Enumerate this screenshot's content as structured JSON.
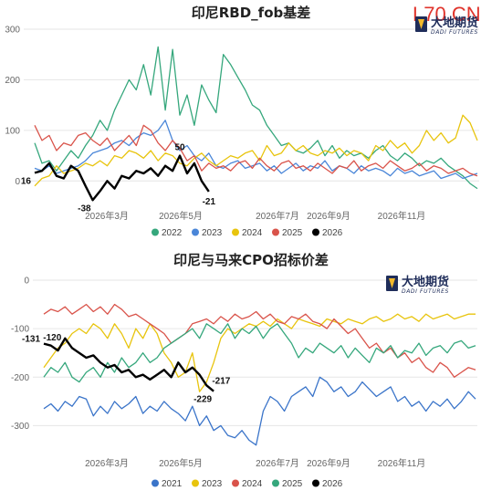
{
  "watermark": "L70.CN",
  "brand": {
    "cn": "大地期货",
    "en": "DADI FUTURES"
  },
  "colors": {
    "2021": "#3a74c9",
    "2022": "#35a77c",
    "2023": "#4a86d8",
    "2024": "#e8c40d",
    "2025": "#d9534a",
    "2026": "#000000"
  },
  "chart_data": [
    {
      "type": "line",
      "title": "印尼RBD_fob基差",
      "ylim": [
        -50,
        300
      ],
      "yticks": [
        0,
        100,
        200,
        300
      ],
      "x_ticks": [
        "2026年3月",
        "2026年5月",
        "2026年7月",
        "2026年9月",
        "2026年11月"
      ],
      "legend_position": "bottom",
      "grid": true,
      "annotations": [
        {
          "label": "16",
          "series": "2026",
          "point": "first"
        },
        {
          "label": "50",
          "series": "2026",
          "point": "max"
        },
        {
          "label": "-38",
          "series": "2026",
          "point": "min"
        },
        {
          "label": "-21",
          "series": "2026",
          "point": "last"
        }
      ],
      "series": [
        {
          "name": "2022",
          "color": "#35a77c",
          "values": [
            75,
            35,
            40,
            20,
            40,
            60,
            45,
            70,
            90,
            120,
            100,
            140,
            170,
            200,
            180,
            230,
            170,
            265,
            140,
            260,
            130,
            170,
            110,
            190,
            160,
            135,
            250,
            230,
            205,
            180,
            150,
            140,
            110,
            90,
            70,
            75,
            60,
            55,
            65,
            80,
            50,
            70,
            45,
            60,
            50,
            55,
            45,
            60,
            70,
            50,
            40,
            55,
            45,
            30,
            40,
            35,
            45,
            30,
            20,
            10,
            -5,
            -15
          ]
        },
        {
          "name": "2023",
          "color": "#4a86d8",
          "values": [
            25,
            20,
            30,
            15,
            20,
            25,
            30,
            40,
            55,
            60,
            65,
            75,
            80,
            70,
            85,
            95,
            90,
            100,
            120,
            80,
            60,
            70,
            50,
            40,
            55,
            30,
            25,
            35,
            40,
            25,
            30,
            35,
            20,
            30,
            15,
            25,
            35,
            20,
            30,
            25,
            40,
            20,
            30,
            25,
            15,
            30,
            20,
            25,
            20,
            10,
            25,
            15,
            20,
            10,
            15,
            20,
            5,
            10,
            15,
            5,
            10,
            15
          ]
        },
        {
          "name": "2024",
          "color": "#e8c40d",
          "values": [
            -10,
            5,
            10,
            30,
            15,
            20,
            25,
            35,
            30,
            40,
            30,
            50,
            45,
            60,
            55,
            45,
            60,
            40,
            55,
            50,
            35,
            30,
            45,
            55,
            40,
            30,
            40,
            50,
            45,
            55,
            60,
            40,
            70,
            50,
            55,
            75,
            60,
            70,
            55,
            50,
            60,
            55,
            65,
            50,
            60,
            55,
            40,
            70,
            60,
            80,
            65,
            75,
            55,
            70,
            100,
            80,
            95,
            75,
            85,
            130,
            115,
            80
          ]
        },
        {
          "name": "2025",
          "color": "#d9534a",
          "values": [
            110,
            80,
            90,
            60,
            75,
            70,
            90,
            95,
            80,
            70,
            85,
            60,
            75,
            90,
            70,
            110,
            100,
            75,
            60,
            80,
            65,
            40,
            50,
            20,
            35,
            25,
            30,
            20,
            35,
            40,
            25,
            45,
            30,
            20,
            35,
            40,
            25,
            30,
            20,
            35,
            25,
            15,
            30,
            25,
            40,
            20,
            30,
            35,
            25,
            40,
            30,
            20,
            25,
            35,
            20,
            30,
            25,
            15,
            20,
            25,
            15,
            10
          ]
        },
        {
          "name": "2026",
          "color": "#000000",
          "values": [
            16,
            20,
            35,
            10,
            5,
            30,
            20,
            -10,
            -38,
            -20,
            0,
            -15,
            10,
            5,
            20,
            15,
            25,
            10,
            30,
            20,
            50,
            15,
            35,
            0,
            -21
          ]
        }
      ]
    },
    {
      "type": "line",
      "title": "印尼与马来CPO招标价差",
      "ylim": [
        -350,
        0
      ],
      "yticks": [
        -300,
        -200,
        -100,
        0
      ],
      "x_ticks": [
        "2026年3月",
        "2026年5月",
        "2026年7月",
        "2026年9月",
        "2026年11月"
      ],
      "legend_position": "bottom",
      "grid": true,
      "annotations": [
        {
          "label": "-131",
          "series": "2026",
          "point": "first"
        },
        {
          "label": "-120",
          "series": "2026",
          "point": "max"
        },
        {
          "label": "-229",
          "series": "2026",
          "point": "min"
        },
        {
          "label": "-217",
          "series": "2026",
          "point": "second-last"
        }
      ],
      "series": [
        {
          "name": "2021",
          "color": "#3a74c9",
          "values": [
            -265,
            -255,
            -270,
            -250,
            -260,
            -240,
            -245,
            -280,
            -260,
            -275,
            -250,
            -265,
            -255,
            -240,
            -275,
            -260,
            -270,
            -250,
            -265,
            -275,
            -290,
            -260,
            -300,
            -280,
            -310,
            -300,
            -320,
            -325,
            -310,
            -330,
            -340,
            -270,
            -240,
            -250,
            -270,
            -240,
            -230,
            -220,
            -240,
            -200,
            -210,
            -230,
            -220,
            -240,
            -230,
            -210,
            -225,
            -240,
            -230,
            -220,
            -250,
            -240,
            -260,
            -250,
            -270,
            -250,
            -260,
            -245,
            -265,
            -250,
            -230,
            -245
          ]
        },
        {
          "name": "2023",
          "color": "#e8c40d",
          "values": [
            -180,
            -160,
            -140,
            -130,
            -110,
            -100,
            -110,
            -90,
            -100,
            -120,
            -90,
            -110,
            -140,
            -100,
            -120,
            -90,
            -110,
            -150,
            -170,
            -200,
            -190,
            -150,
            -230,
            -210,
            -170,
            -120,
            -100,
            -110,
            -100,
            -90,
            -95,
            -85,
            -95,
            -80,
            -90,
            -100,
            -80,
            -85,
            -90,
            -95,
            -80,
            -85,
            -90,
            -80,
            -85,
            -90,
            -80,
            -75,
            -85,
            -80,
            -70,
            -80,
            -75,
            -85,
            -70,
            -80,
            -75,
            -70,
            -80,
            -75,
            -70,
            -70
          ]
        },
        {
          "name": "2024",
          "color": "#d9534a",
          "values": [
            -70,
            -60,
            -65,
            -55,
            -70,
            -60,
            -50,
            -65,
            -55,
            -70,
            -50,
            -60,
            -75,
            -70,
            -80,
            -90,
            -100,
            -110,
            -130,
            -120,
            -110,
            -90,
            -85,
            -80,
            -90,
            -75,
            -85,
            -70,
            -80,
            -75,
            -65,
            -80,
            -70,
            -85,
            -90,
            -75,
            -80,
            -70,
            -85,
            -90,
            -100,
            -80,
            -95,
            -110,
            -100,
            -120,
            -140,
            -130,
            -150,
            -140,
            -160,
            -150,
            -170,
            -160,
            -180,
            -190,
            -170,
            -180,
            -200,
            -190,
            -180,
            -185
          ]
        },
        {
          "name": "2025",
          "color": "#35a77c",
          "values": [
            -200,
            -180,
            -190,
            -170,
            -200,
            -210,
            -190,
            -180,
            -200,
            -170,
            -190,
            -160,
            -180,
            -170,
            -150,
            -170,
            -160,
            -140,
            -130,
            -120,
            -110,
            -100,
            -120,
            -90,
            -100,
            -110,
            -90,
            -120,
            -100,
            -110,
            -95,
            -120,
            -100,
            -90,
            -110,
            -130,
            -160,
            -140,
            -150,
            -130,
            -140,
            -150,
            -135,
            -160,
            -140,
            -155,
            -170,
            -140,
            -150,
            -135,
            -160,
            -145,
            -150,
            -130,
            -155,
            -140,
            -135,
            -150,
            -130,
            -125,
            -140,
            -135
          ]
        },
        {
          "name": "2026",
          "color": "#000000",
          "values": [
            -131,
            -135,
            -145,
            -120,
            -140,
            -150,
            -160,
            -155,
            -170,
            -180,
            -175,
            -190,
            -185,
            -200,
            -195,
            -205,
            -195,
            -185,
            -200,
            -170,
            -190,
            -180,
            -195,
            -217,
            -229
          ]
        }
      ]
    }
  ]
}
